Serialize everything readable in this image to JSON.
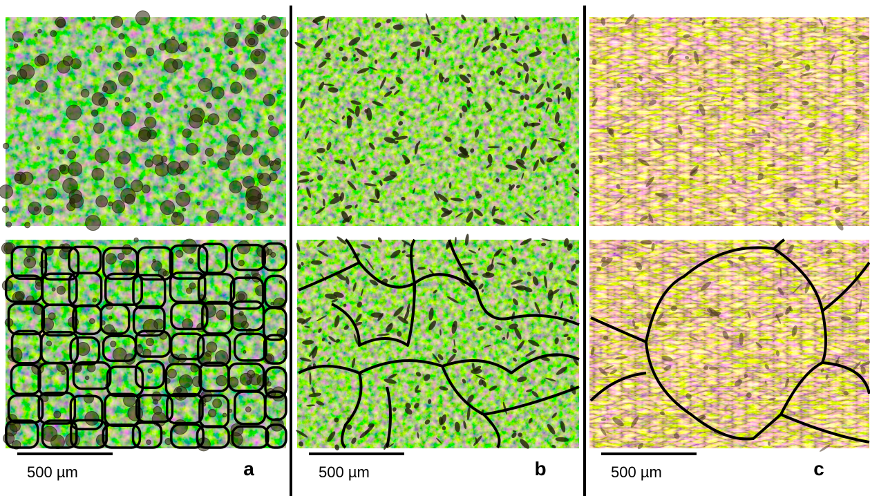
{
  "panels": [
    {
      "scale_bar": "500 µm",
      "label": "a"
    },
    {
      "scale_bar": "500 µm",
      "label": "b"
    },
    {
      "scale_bar": "500 µm",
      "label": "c"
    }
  ]
}
